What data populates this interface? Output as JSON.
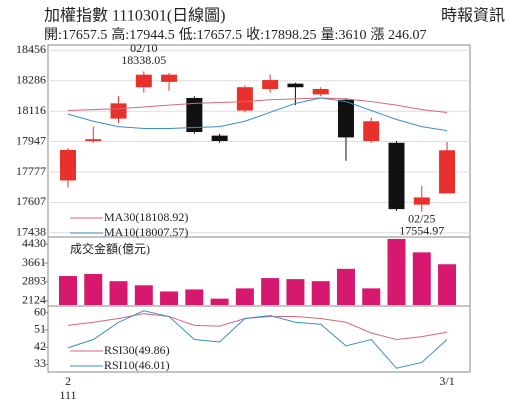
{
  "header": {
    "title": "加權指數 1110301(日線圖)",
    "source": "時報資訊",
    "info": [
      "開:17657.5",
      "高:17944.5",
      "低:17657.5",
      "收:17898.25",
      "量:3610",
      "漲 246.07"
    ]
  },
  "chart_data": [
    {
      "type": "candlestick",
      "categories": [
        "2",
        null,
        null,
        null,
        null,
        null,
        null,
        null,
        null,
        null,
        null,
        null,
        null,
        null,
        null,
        "3/1"
      ],
      "x_sublabel": "111",
      "open": [
        17730,
        17950,
        18075,
        18250,
        18280,
        18190,
        17980,
        18120,
        18240,
        18270,
        18210,
        18180,
        17950,
        17940,
        17595,
        17657.5
      ],
      "high": [
        17910,
        18030,
        18200,
        18338.05,
        18330,
        18200,
        17990,
        18260,
        18320,
        18275,
        18250,
        18190,
        18080,
        17950,
        17700,
        17944.5
      ],
      "low": [
        17690,
        17940,
        18050,
        18220,
        18230,
        17990,
        17940,
        18110,
        18220,
        18150,
        18200,
        17840,
        17940,
        17560,
        17554.97,
        17657.5
      ],
      "close": [
        17900,
        17960,
        18160,
        18320,
        18320,
        18000,
        17950,
        18250,
        18290,
        18250,
        18240,
        17970,
        18060,
        17570,
        17635,
        17898.25
      ],
      "up_color": "#e8312a",
      "down_color": "#111111",
      "ylim": [
        17420,
        18480
      ],
      "yticks": [
        18456,
        18286,
        18116,
        17947,
        17777,
        17607,
        17438
      ],
      "grid": true,
      "series": [
        {
          "name": "MA30(18108.92)",
          "color": "#d9677a",
          "values": [
            18120,
            18125,
            18130,
            18140,
            18150,
            18160,
            18165,
            18170,
            18180,
            18185,
            18190,
            18185,
            18170,
            18150,
            18125,
            18108.92
          ]
        },
        {
          "name": "MA10(18007.57)",
          "color": "#3b8fc6",
          "values": [
            18100,
            18060,
            18030,
            18020,
            18020,
            18025,
            18030,
            18060,
            18110,
            18160,
            18190,
            18170,
            18120,
            18070,
            18030,
            18007.57
          ]
        }
      ],
      "annotations": [
        {
          "text": "02/10",
          "value": 18338.05
        },
        {
          "text": "02/25",
          "value": 17554.97
        }
      ]
    },
    {
      "type": "bar",
      "title": "成交金額(億元)",
      "color": "#d6186e",
      "values": [
        3130,
        3214,
        2920,
        2753,
        2501,
        2585,
        2208,
        2627,
        3046,
        3004,
        2920,
        3424,
        2627,
        4640,
        4095,
        3610
      ],
      "ylim": [
        1950,
        4680
      ],
      "yticks": [
        4430,
        3661,
        2893,
        2124
      ]
    },
    {
      "type": "line",
      "ylim": [
        29,
        63
      ],
      "yticks": [
        60,
        51,
        42,
        33
      ],
      "series": [
        {
          "name": "RSI30(49.86)",
          "color": "#d9677a",
          "values": [
            53.4,
            55,
            57,
            59.5,
            58,
            53.4,
            53,
            57,
            58,
            58,
            57,
            55,
            49.4,
            46,
            47.5,
            49.86
          ]
        },
        {
          "name": "RSI10(46.01)",
          "color": "#3b8fc6",
          "values": [
            41.7,
            46,
            55,
            61,
            58,
            46,
            44.7,
            57,
            58.5,
            55,
            54,
            42.7,
            46,
            31,
            34,
            46.01
          ]
        }
      ]
    }
  ]
}
